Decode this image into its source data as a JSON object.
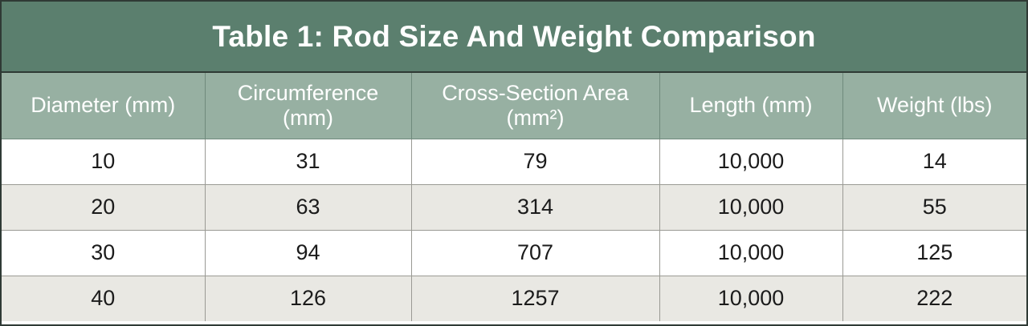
{
  "table": {
    "title": "Table 1: Rod Size And Weight Comparison",
    "headers": [
      [
        "Diameter (mm)"
      ],
      [
        "Circumference",
        "(mm)"
      ],
      [
        "Cross-Section Area",
        "(mm²)"
      ],
      [
        "Length (mm)"
      ],
      [
        "Weight (lbs)"
      ]
    ],
    "rows": [
      [
        "10",
        "31",
        "79",
        "10,000",
        "14"
      ],
      [
        "20",
        "63",
        "314",
        "10,000",
        "55"
      ],
      [
        "30",
        "94",
        "707",
        "10,000",
        "125"
      ],
      [
        "40",
        "126",
        "1257",
        "10,000",
        "222"
      ]
    ],
    "colors": {
      "title_bg": "#5b7f6e",
      "header_bg": "#97b0a2",
      "row_alt_bg": "#e9e8e3",
      "border": "#2f3a35"
    }
  }
}
